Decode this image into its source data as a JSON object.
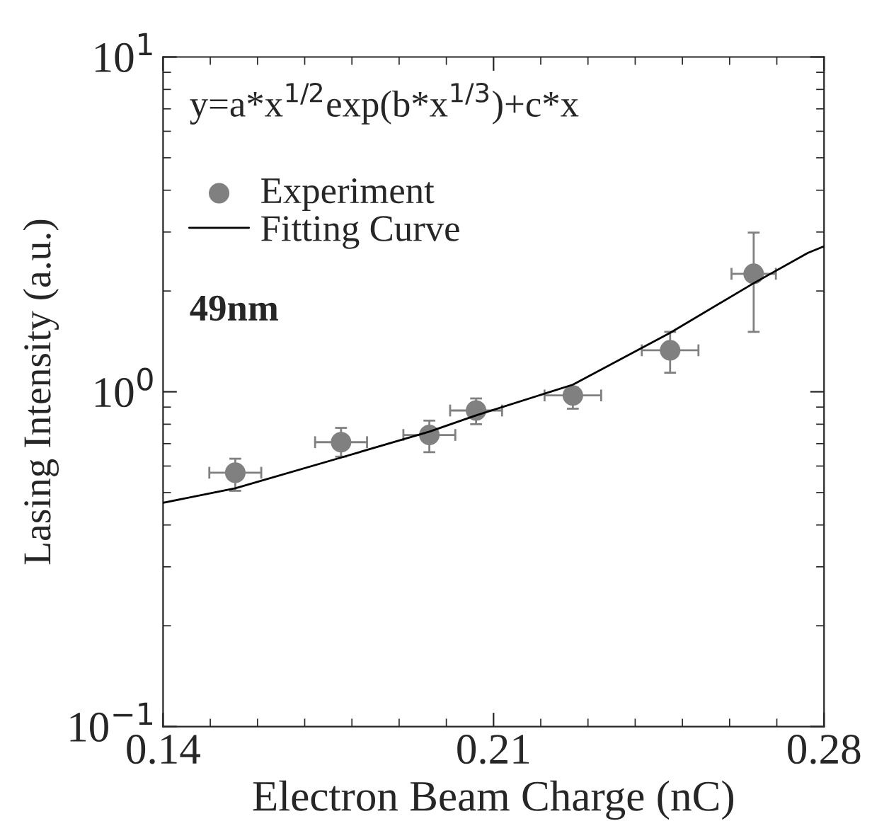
{
  "chart_data": {
    "type": "scatter",
    "xlabel": "Electron Beam Charge (nC)",
    "ylabel": "Lasing Intensity (a.u.)",
    "annotations": [
      "y=a*x$^{1/2}$exp(b*x$^{1/3}$)+c*x",
      "49nm"
    ],
    "series": [
      {
        "name": "Experiment",
        "color": "#808080",
        "marker": "circle",
        "x": [
          0.1553,
          0.1777,
          0.1964,
          0.2063,
          0.2268,
          0.2474,
          0.2651
        ],
        "values": [
          0.573,
          0.707,
          0.743,
          0.879,
          0.975,
          1.33,
          2.25
        ],
        "errors": [
          [
            0.506,
            0.631
          ],
          [
            0.64,
            0.78
          ],
          [
            0.66,
            0.82
          ],
          [
            0.8,
            0.955
          ],
          [
            0.89,
            1.03
          ],
          [
            1.14,
            1.51
          ],
          [
            1.51,
            2.99
          ]
        ],
        "xerrors": [
          0.0055,
          0.0055,
          0.0055,
          0.0055,
          0.006,
          0.006,
          0.0047
        ]
      },
      {
        "name": "Fitting Curve",
        "type": "line",
        "color": "#000000",
        "marker": "none",
        "line_style": "solid",
        "x": [
          0.14,
          0.1553,
          0.1777,
          0.1964,
          0.2063,
          0.2268,
          0.2474,
          0.2651,
          0.2766,
          0.28
        ],
        "values": [
          0.466,
          0.515,
          0.636,
          0.76,
          0.85,
          1.05,
          1.5,
          2.11,
          2.6,
          2.72
        ]
      }
    ],
    "log": "y",
    "xlim": [
      0.14,
      0.28
    ],
    "xticks": [
      0.14,
      0.21,
      0.28
    ],
    "ylim": [
      0.1,
      10
    ],
    "yticks": [
      {
        "value": 0.1,
        "label": "10$^{−1}$"
      },
      {
        "value": 1,
        "label": "10$^{0}$"
      },
      {
        "value": 10,
        "label": "10$^{1}$"
      }
    ],
    "grid": false,
    "legend": "top left"
  }
}
